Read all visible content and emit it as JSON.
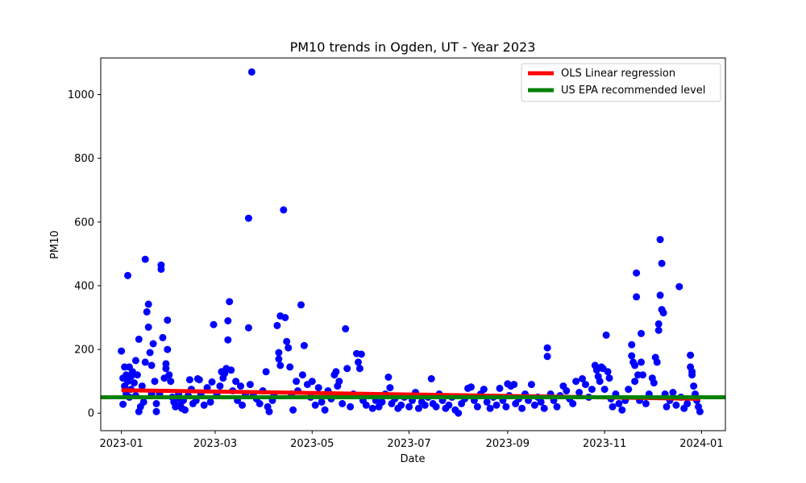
{
  "chart_data": {
    "type": "scatter",
    "title": "PM10 trends in Ogden, UT - Year 2023",
    "xlabel": "Date",
    "ylabel": "PM10",
    "xlim": [
      "2022-12-19",
      "2024-01-16"
    ],
    "ylim": [
      -55,
      1115
    ],
    "x_ticks": [
      "2023-01",
      "2023-03",
      "2023-05",
      "2023-07",
      "2023-09",
      "2023-11",
      "2024-01"
    ],
    "y_ticks": [
      0,
      200,
      400,
      600,
      800,
      1000
    ],
    "grid": false,
    "legend_position": "top-right",
    "series": [
      {
        "name": "",
        "kind": "scatter",
        "color": "#0000ff",
        "points": [
          [
            "2023-01-01",
            195
          ],
          [
            "2023-01-02",
            110
          ],
          [
            "2023-01-02",
            28
          ],
          [
            "2023-01-03",
            145
          ],
          [
            "2023-01-03",
            85
          ],
          [
            "2023-01-04",
            120
          ],
          [
            "2023-01-04",
            60
          ],
          [
            "2023-01-05",
            100
          ],
          [
            "2023-01-05",
            432
          ],
          [
            "2023-01-06",
            145
          ],
          [
            "2023-01-06",
            50
          ],
          [
            "2023-01-07",
            115
          ],
          [
            "2023-01-07",
            75
          ],
          [
            "2023-01-08",
            130
          ],
          [
            "2023-01-09",
            95
          ],
          [
            "2023-01-10",
            165
          ],
          [
            "2023-01-10",
            55
          ],
          [
            "2023-01-11",
            120
          ],
          [
            "2023-01-12",
            232
          ],
          [
            "2023-01-12",
            5
          ],
          [
            "2023-01-13",
            20
          ],
          [
            "2023-01-14",
            85
          ],
          [
            "2023-01-15",
            35
          ],
          [
            "2023-01-16",
            483
          ],
          [
            "2023-01-16",
            160
          ],
          [
            "2023-01-17",
            318
          ],
          [
            "2023-01-18",
            342
          ],
          [
            "2023-01-18",
            270
          ],
          [
            "2023-01-19",
            190
          ],
          [
            "2023-01-20",
            150
          ],
          [
            "2023-01-20",
            60
          ],
          [
            "2023-01-21",
            218
          ],
          [
            "2023-01-22",
            100
          ],
          [
            "2023-01-23",
            30
          ],
          [
            "2023-01-23",
            5
          ],
          [
            "2023-01-25",
            60
          ],
          [
            "2023-01-26",
            465
          ],
          [
            "2023-01-26",
            452
          ],
          [
            "2023-01-27",
            237
          ],
          [
            "2023-01-28",
            110
          ],
          [
            "2023-01-29",
            155
          ],
          [
            "2023-01-29",
            140
          ],
          [
            "2023-01-30",
            292
          ],
          [
            "2023-01-30",
            200
          ],
          [
            "2023-01-31",
            120
          ],
          [
            "2023-02-01",
            100
          ],
          [
            "2023-02-02",
            50
          ],
          [
            "2023-02-03",
            35
          ],
          [
            "2023-02-04",
            20
          ],
          [
            "2023-02-05",
            45
          ],
          [
            "2023-02-06",
            60
          ],
          [
            "2023-02-07",
            25
          ],
          [
            "2023-02-08",
            15
          ],
          [
            "2023-02-09",
            40
          ],
          [
            "2023-02-10",
            10
          ],
          [
            "2023-02-12",
            55
          ],
          [
            "2023-02-13",
            105
          ],
          [
            "2023-02-14",
            75
          ],
          [
            "2023-02-15",
            30
          ],
          [
            "2023-02-17",
            40
          ],
          [
            "2023-02-18",
            108
          ],
          [
            "2023-02-19",
            105
          ],
          [
            "2023-02-20",
            60
          ],
          [
            "2023-02-22",
            25
          ],
          [
            "2023-02-24",
            80
          ],
          [
            "2023-02-26",
            35
          ],
          [
            "2023-02-27",
            98
          ],
          [
            "2023-02-28",
            278
          ],
          [
            "2023-03-02",
            60
          ],
          [
            "2023-03-04",
            85
          ],
          [
            "2023-03-05",
            130
          ],
          [
            "2023-03-06",
            110
          ],
          [
            "2023-03-07",
            125
          ],
          [
            "2023-03-08",
            140
          ],
          [
            "2023-03-09",
            290
          ],
          [
            "2023-03-09",
            230
          ],
          [
            "2023-03-10",
            350
          ],
          [
            "2023-03-11",
            135
          ],
          [
            "2023-03-12",
            70
          ],
          [
            "2023-03-14",
            100
          ],
          [
            "2023-03-15",
            40
          ],
          [
            "2023-03-17",
            85
          ],
          [
            "2023-03-18",
            25
          ],
          [
            "2023-03-20",
            60
          ],
          [
            "2023-03-22",
            612
          ],
          [
            "2023-03-22",
            268
          ],
          [
            "2023-03-23",
            90
          ],
          [
            "2023-03-24",
            1071
          ],
          [
            "2023-03-25",
            60
          ],
          [
            "2023-03-27",
            45
          ],
          [
            "2023-03-29",
            30
          ],
          [
            "2023-03-31",
            70
          ],
          [
            "2023-04-02",
            130
          ],
          [
            "2023-04-03",
            20
          ],
          [
            "2023-04-04",
            5
          ],
          [
            "2023-04-06",
            40
          ],
          [
            "2023-04-07",
            60
          ],
          [
            "2023-04-09",
            275
          ],
          [
            "2023-04-10",
            190
          ],
          [
            "2023-04-10",
            170
          ],
          [
            "2023-04-11",
            150
          ],
          [
            "2023-04-11",
            305
          ],
          [
            "2023-04-13",
            638
          ],
          [
            "2023-04-14",
            300
          ],
          [
            "2023-04-15",
            225
          ],
          [
            "2023-04-16",
            205
          ],
          [
            "2023-04-17",
            145
          ],
          [
            "2023-04-18",
            60
          ],
          [
            "2023-04-19",
            10
          ],
          [
            "2023-04-21",
            100
          ],
          [
            "2023-04-22",
            70
          ],
          [
            "2023-04-24",
            340
          ],
          [
            "2023-04-25",
            120
          ],
          [
            "2023-04-26",
            212
          ],
          [
            "2023-04-28",
            90
          ],
          [
            "2023-04-30",
            50
          ],
          [
            "2023-05-01",
            100
          ],
          [
            "2023-05-03",
            25
          ],
          [
            "2023-05-05",
            80
          ],
          [
            "2023-05-07",
            35
          ],
          [
            "2023-05-09",
            10
          ],
          [
            "2023-05-11",
            70
          ],
          [
            "2023-05-13",
            45
          ],
          [
            "2023-05-15",
            120
          ],
          [
            "2023-05-16",
            130
          ],
          [
            "2023-05-17",
            85
          ],
          [
            "2023-05-18",
            100
          ],
          [
            "2023-05-20",
            30
          ],
          [
            "2023-05-22",
            265
          ],
          [
            "2023-05-23",
            140
          ],
          [
            "2023-05-25",
            20
          ],
          [
            "2023-05-27",
            60
          ],
          [
            "2023-05-29",
            187
          ],
          [
            "2023-05-30",
            160
          ],
          [
            "2023-05-31",
            140
          ],
          [
            "2023-06-01",
            185
          ],
          [
            "2023-06-02",
            40
          ],
          [
            "2023-06-04",
            25
          ],
          [
            "2023-06-06",
            55
          ],
          [
            "2023-06-08",
            15
          ],
          [
            "2023-06-10",
            40
          ],
          [
            "2023-06-12",
            20
          ],
          [
            "2023-06-14",
            35
          ],
          [
            "2023-06-16",
            60
          ],
          [
            "2023-06-18",
            113
          ],
          [
            "2023-06-19",
            80
          ],
          [
            "2023-06-20",
            30
          ],
          [
            "2023-06-22",
            45
          ],
          [
            "2023-06-24",
            15
          ],
          [
            "2023-06-26",
            25
          ],
          [
            "2023-06-28",
            50
          ],
          [
            "2023-07-01",
            20
          ],
          [
            "2023-07-03",
            40
          ],
          [
            "2023-07-05",
            65
          ],
          [
            "2023-07-07",
            15
          ],
          [
            "2023-07-09",
            35
          ],
          [
            "2023-07-11",
            25
          ],
          [
            "2023-07-13",
            50
          ],
          [
            "2023-07-15",
            108
          ],
          [
            "2023-07-16",
            30
          ],
          [
            "2023-07-18",
            20
          ],
          [
            "2023-07-20",
            60
          ],
          [
            "2023-07-22",
            40
          ],
          [
            "2023-07-24",
            15
          ],
          [
            "2023-07-26",
            25
          ],
          [
            "2023-07-28",
            50
          ],
          [
            "2023-07-30",
            10
          ],
          [
            "2023-08-01",
            0
          ],
          [
            "2023-08-03",
            30
          ],
          [
            "2023-08-05",
            45
          ],
          [
            "2023-08-07",
            78
          ],
          [
            "2023-08-09",
            82
          ],
          [
            "2023-08-11",
            40
          ],
          [
            "2023-08-13",
            20
          ],
          [
            "2023-08-15",
            60
          ],
          [
            "2023-08-17",
            75
          ],
          [
            "2023-08-19",
            35
          ],
          [
            "2023-08-21",
            15
          ],
          [
            "2023-08-23",
            50
          ],
          [
            "2023-08-25",
            25
          ],
          [
            "2023-08-27",
            78
          ],
          [
            "2023-08-29",
            40
          ],
          [
            "2023-08-31",
            20
          ],
          [
            "2023-09-01",
            92
          ],
          [
            "2023-09-02",
            55
          ],
          [
            "2023-09-03",
            85
          ],
          [
            "2023-09-05",
            90
          ],
          [
            "2023-09-06",
            30
          ],
          [
            "2023-09-08",
            45
          ],
          [
            "2023-09-10",
            15
          ],
          [
            "2023-09-12",
            60
          ],
          [
            "2023-09-14",
            40
          ],
          [
            "2023-09-16",
            90
          ],
          [
            "2023-09-18",
            25
          ],
          [
            "2023-09-20",
            50
          ],
          [
            "2023-09-22",
            35
          ],
          [
            "2023-09-24",
            15
          ],
          [
            "2023-09-26",
            205
          ],
          [
            "2023-09-26",
            178
          ],
          [
            "2023-09-28",
            60
          ],
          [
            "2023-09-30",
            40
          ],
          [
            "2023-10-02",
            20
          ],
          [
            "2023-10-04",
            55
          ],
          [
            "2023-10-06",
            85
          ],
          [
            "2023-10-08",
            70
          ],
          [
            "2023-10-10",
            45
          ],
          [
            "2023-10-12",
            30
          ],
          [
            "2023-10-14",
            100
          ],
          [
            "2023-10-16",
            65
          ],
          [
            "2023-10-18",
            108
          ],
          [
            "2023-10-20",
            90
          ],
          [
            "2023-10-22",
            50
          ],
          [
            "2023-10-24",
            75
          ],
          [
            "2023-10-26",
            150
          ],
          [
            "2023-10-27",
            135
          ],
          [
            "2023-10-28",
            115
          ],
          [
            "2023-10-29",
            100
          ],
          [
            "2023-10-30",
            145
          ],
          [
            "2023-10-31",
            140
          ],
          [
            "2023-11-01",
            75
          ],
          [
            "2023-11-02",
            245
          ],
          [
            "2023-11-03",
            130
          ],
          [
            "2023-11-04",
            110
          ],
          [
            "2023-11-05",
            45
          ],
          [
            "2023-11-06",
            20
          ],
          [
            "2023-11-08",
            60
          ],
          [
            "2023-11-10",
            30
          ],
          [
            "2023-11-12",
            10
          ],
          [
            "2023-11-14",
            40
          ],
          [
            "2023-11-16",
            75
          ],
          [
            "2023-11-18",
            215
          ],
          [
            "2023-11-18",
            180
          ],
          [
            "2023-11-19",
            160
          ],
          [
            "2023-11-20",
            150
          ],
          [
            "2023-11-20",
            100
          ],
          [
            "2023-11-21",
            440
          ],
          [
            "2023-11-21",
            365
          ],
          [
            "2023-11-22",
            120
          ],
          [
            "2023-11-23",
            40
          ],
          [
            "2023-11-24",
            250
          ],
          [
            "2023-11-24",
            160
          ],
          [
            "2023-11-25",
            120
          ],
          [
            "2023-11-27",
            30
          ],
          [
            "2023-11-29",
            60
          ],
          [
            "2023-12-01",
            110
          ],
          [
            "2023-12-02",
            95
          ],
          [
            "2023-12-03",
            175
          ],
          [
            "2023-12-04",
            160
          ],
          [
            "2023-12-05",
            280
          ],
          [
            "2023-12-05",
            260
          ],
          [
            "2023-12-06",
            545
          ],
          [
            "2023-12-06",
            370
          ],
          [
            "2023-12-07",
            470
          ],
          [
            "2023-12-07",
            325
          ],
          [
            "2023-12-08",
            315
          ],
          [
            "2023-12-09",
            60
          ],
          [
            "2023-12-10",
            20
          ],
          [
            "2023-12-12",
            40
          ],
          [
            "2023-12-14",
            65
          ],
          [
            "2023-12-16",
            25
          ],
          [
            "2023-12-18",
            397
          ],
          [
            "2023-12-19",
            50
          ],
          [
            "2023-12-21",
            15
          ],
          [
            "2023-12-23",
            30
          ],
          [
            "2023-12-25",
            182
          ],
          [
            "2023-12-25",
            145
          ],
          [
            "2023-12-26",
            130
          ],
          [
            "2023-12-26",
            120
          ],
          [
            "2023-12-27",
            85
          ],
          [
            "2023-12-28",
            60
          ],
          [
            "2023-12-29",
            40
          ],
          [
            "2023-12-30",
            20
          ],
          [
            "2023-12-31",
            5
          ]
        ]
      },
      {
        "name": "OLS Linear regression",
        "kind": "line",
        "color": "#ff0000",
        "points": [
          [
            "2023-01-01",
            72
          ],
          [
            "2023-12-31",
            45
          ]
        ]
      },
      {
        "name": "US EPA recommended level",
        "kind": "hline",
        "color": "#008000",
        "y": 50
      }
    ]
  }
}
